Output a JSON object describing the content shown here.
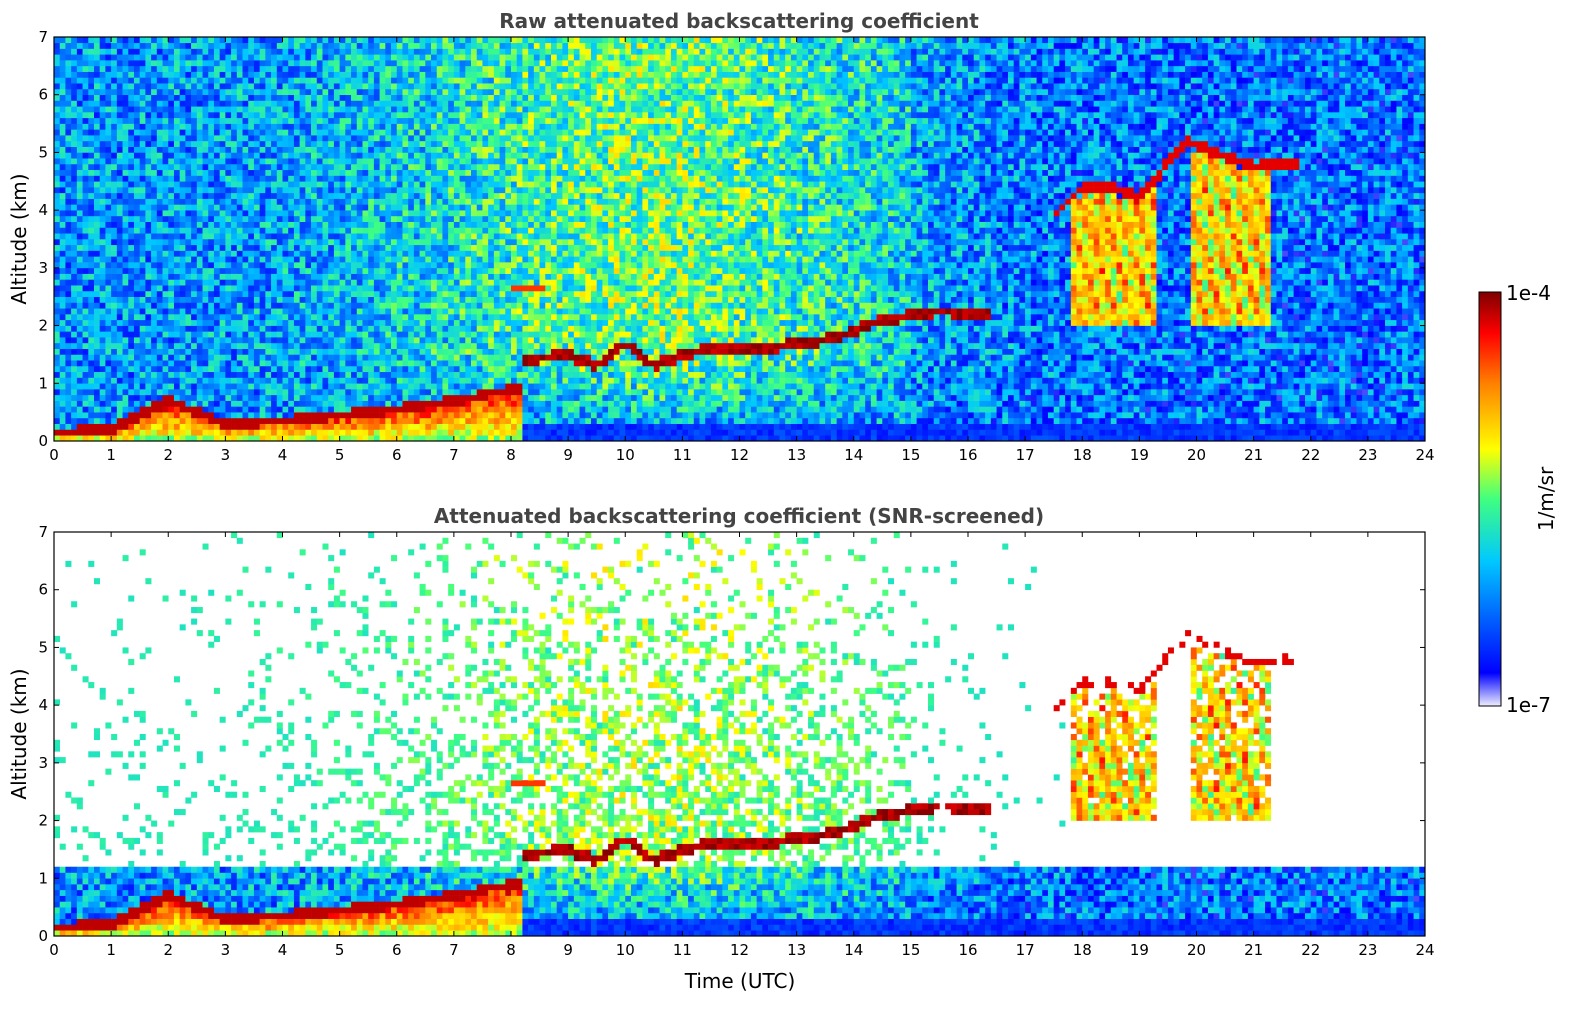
{
  "chart_data": [
    {
      "type": "heatmap",
      "title": "Raw attenuated backscattering coefficient",
      "xlabel": "",
      "ylabel": "Altitude (km)",
      "xlim": [
        0,
        24
      ],
      "ylim": [
        0,
        7
      ],
      "xticks": [
        0,
        1,
        2,
        3,
        4,
        5,
        6,
        7,
        8,
        9,
        10,
        11,
        12,
        13,
        14,
        15,
        16,
        17,
        18,
        19,
        20,
        21,
        22,
        23,
        24
      ],
      "yticks": [
        0,
        1,
        2,
        3,
        4,
        5,
        6,
        7
      ],
      "grid": false,
      "screened": false,
      "features": {
        "surface_aerosol_layer_top_km": {
          "x": [
            0,
            1,
            2,
            3,
            4,
            5,
            6,
            7,
            8
          ],
          "y": [
            0.15,
            0.2,
            0.7,
            0.3,
            0.35,
            0.45,
            0.55,
            0.7,
            0.9
          ]
        },
        "cloud_layer_km": {
          "x": [
            8.2,
            9,
            9.5,
            10,
            10.5,
            11,
            11.5,
            12,
            12.5,
            13,
            13.5,
            14,
            14.5,
            15.5,
            16.3
          ],
          "y": [
            1.4,
            1.5,
            1.3,
            1.7,
            1.3,
            1.5,
            1.6,
            1.6,
            1.6,
            1.7,
            1.75,
            1.9,
            2.1,
            2.25,
            2.2
          ]
        },
        "aerosol_patch_km": {
          "x": [
            8.0,
            8.5
          ],
          "y": [
            2.6,
            2.7
          ]
        },
        "mid_level_cloud_km": {
          "x": [
            17.5,
            18,
            18.5,
            19,
            19.8,
            21,
            21.6
          ],
          "y": [
            3.9,
            4.4,
            4.4,
            4.2,
            5.2,
            4.75,
            4.8
          ]
        },
        "precipitation_fallstreak_km": {
          "x": [
            17.8,
            22.0
          ],
          "y": [
            2.0,
            4.5
          ]
        }
      }
    },
    {
      "type": "heatmap",
      "title": "Attenuated backscattering coefficient (SNR-screened)",
      "xlabel": "Time (UTC)",
      "ylabel": "Altitude (km)",
      "xlim": [
        0,
        24
      ],
      "ylim": [
        0,
        7
      ],
      "xticks": [
        0,
        1,
        2,
        3,
        4,
        5,
        6,
        7,
        8,
        9,
        10,
        11,
        12,
        13,
        14,
        15,
        16,
        17,
        18,
        19,
        20,
        21,
        22,
        23,
        24
      ],
      "yticks": [
        0,
        1,
        2,
        3,
        4,
        5,
        6,
        7
      ],
      "grid": false,
      "screened": true
    }
  ],
  "colorbar": {
    "label": "1/m/sr",
    "min_label": "1e-7",
    "max_label": "1e-4",
    "scale": "log",
    "colors": [
      "#e8e8f8",
      "#0000ff",
      "#00bfff",
      "#00ffa0",
      "#ffff00",
      "#ff8000",
      "#ff0000",
      "#8b0000"
    ]
  }
}
